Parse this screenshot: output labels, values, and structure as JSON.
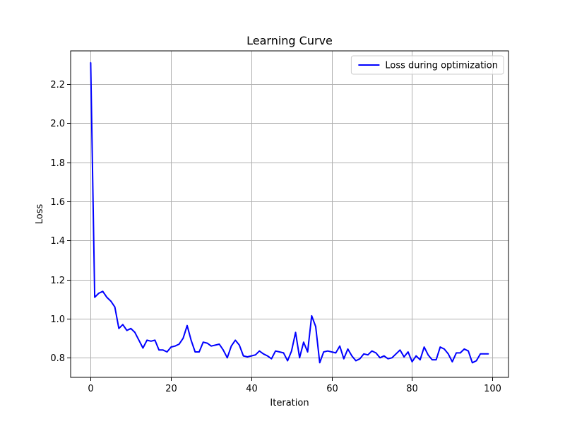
{
  "chart_data": {
    "type": "line",
    "title": "Learning Curve",
    "xlabel": "Iteration",
    "ylabel": "Loss",
    "xlim": [
      -5,
      104
    ],
    "ylim": [
      0.7,
      2.37
    ],
    "xticks": [
      0,
      20,
      40,
      60,
      80,
      100
    ],
    "yticks": [
      0.8,
      1.0,
      1.2,
      1.4,
      1.6,
      1.8,
      2.0,
      2.2
    ],
    "xtick_labels": [
      "0",
      "20",
      "40",
      "60",
      "80",
      "100"
    ],
    "ytick_labels": [
      "0.8",
      "1.0",
      "1.2",
      "1.4",
      "1.6",
      "1.8",
      "2.0",
      "2.2"
    ],
    "grid": true,
    "legend_position": "upper-right",
    "colors": {
      "series": "#0000ff",
      "grid": "#b0b0b0",
      "axes": "#000000"
    },
    "series": [
      {
        "name": "Loss during optimization",
        "x": [
          0,
          1,
          2,
          3,
          4,
          5,
          6,
          7,
          8,
          9,
          10,
          11,
          12,
          13,
          14,
          15,
          16,
          17,
          18,
          19,
          20,
          21,
          22,
          23,
          24,
          25,
          26,
          27,
          28,
          29,
          30,
          31,
          32,
          33,
          34,
          35,
          36,
          37,
          38,
          39,
          40,
          41,
          42,
          43,
          44,
          45,
          46,
          47,
          48,
          49,
          50,
          51,
          52,
          53,
          54,
          55,
          56,
          57,
          58,
          59,
          60,
          61,
          62,
          63,
          64,
          65,
          66,
          67,
          68,
          69,
          70,
          71,
          72,
          73,
          74,
          75,
          76,
          77,
          78,
          79,
          80,
          81,
          82,
          83,
          84,
          85,
          86,
          87,
          88,
          89,
          90,
          91,
          92,
          93,
          94,
          95,
          96,
          97,
          98,
          99
        ],
        "values": [
          2.31,
          1.11,
          1.13,
          1.14,
          1.11,
          1.09,
          1.06,
          0.95,
          0.97,
          0.94,
          0.95,
          0.93,
          0.89,
          0.85,
          0.89,
          0.885,
          0.89,
          0.84,
          0.84,
          0.83,
          0.855,
          0.86,
          0.87,
          0.9,
          0.965,
          0.89,
          0.83,
          0.83,
          0.88,
          0.875,
          0.86,
          0.865,
          0.87,
          0.84,
          0.8,
          0.86,
          0.89,
          0.865,
          0.81,
          0.805,
          0.81,
          0.815,
          0.835,
          0.82,
          0.81,
          0.795,
          0.835,
          0.83,
          0.825,
          0.785,
          0.835,
          0.93,
          0.8,
          0.88,
          0.83,
          1.015,
          0.96,
          0.775,
          0.83,
          0.835,
          0.83,
          0.825,
          0.86,
          0.795,
          0.845,
          0.81,
          0.785,
          0.795,
          0.82,
          0.815,
          0.835,
          0.825,
          0.8,
          0.81,
          0.795,
          0.8,
          0.82,
          0.84,
          0.805,
          0.83,
          0.78,
          0.81,
          0.79,
          0.855,
          0.815,
          0.79,
          0.79,
          0.855,
          0.845,
          0.82,
          0.78,
          0.825,
          0.825,
          0.845,
          0.835,
          0.775,
          0.785,
          0.82,
          0.82,
          0.82
        ]
      }
    ]
  }
}
